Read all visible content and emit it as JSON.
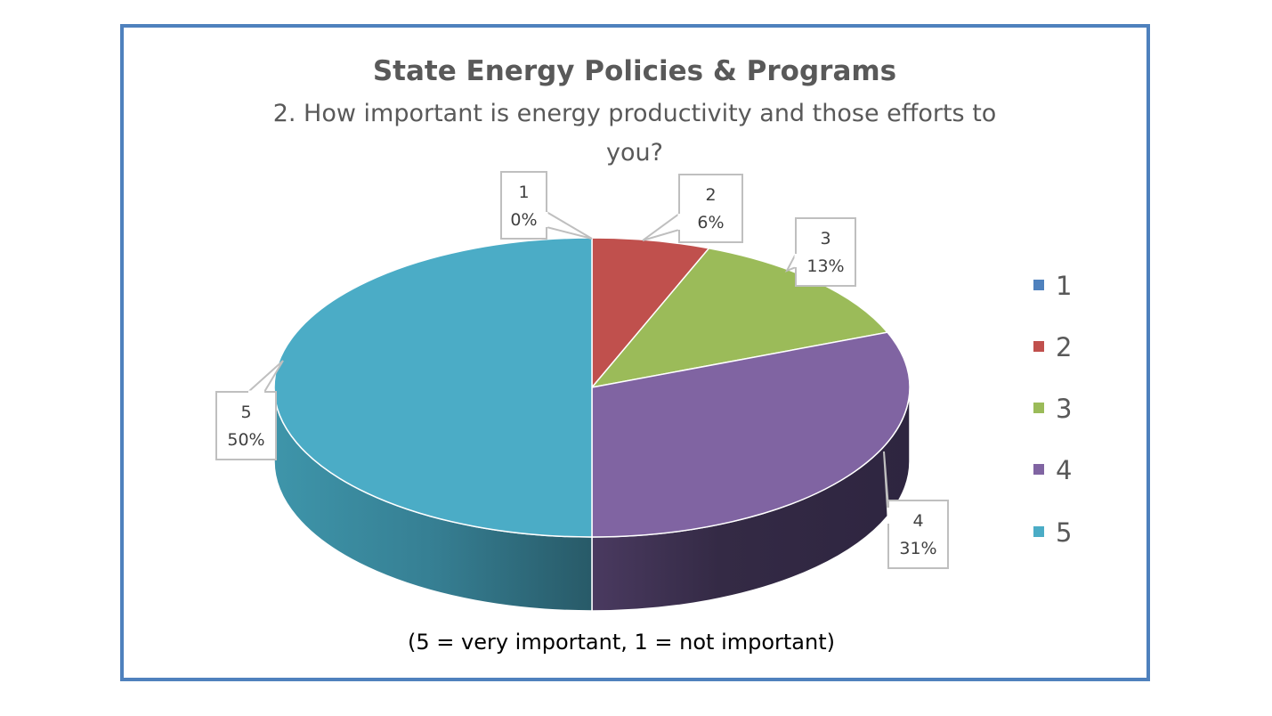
{
  "chart_data": {
    "type": "pie",
    "style": "3d",
    "title": "State Energy Policies & Programs",
    "subtitle_lines": [
      "2. How important is energy productivity and those efforts to",
      "you?"
    ],
    "footnote": "(5 = very important, 1 = not important)",
    "categories": [
      "1",
      "2",
      "3",
      "4",
      "5"
    ],
    "values": [
      0,
      6,
      13,
      31,
      50
    ],
    "data_labels": [
      {
        "category": "1",
        "percent": "0%"
      },
      {
        "category": "2",
        "percent": "6%"
      },
      {
        "category": "3",
        "percent": "13%"
      },
      {
        "category": "4",
        "percent": "31%"
      },
      {
        "category": "5",
        "percent": "50%"
      }
    ],
    "colors": [
      "#4f81bd",
      "#c0504d",
      "#9bbb59",
      "#8064a2",
      "#4bacc6"
    ],
    "side_colors": [
      "#2c4a6e",
      "#6e2d2b",
      "#55692f",
      "#352a45",
      "#2f6e80"
    ],
    "legend": {
      "position": "right",
      "entries": [
        "1",
        "2",
        "3",
        "4",
        "5"
      ]
    },
    "frame_color": "#4f81bd"
  }
}
